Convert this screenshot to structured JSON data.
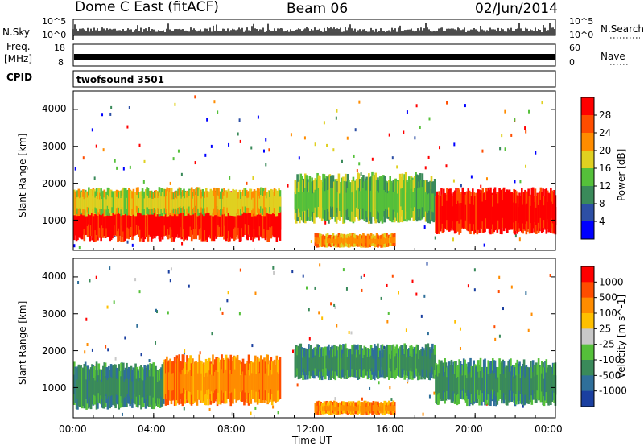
{
  "header": {
    "station": "Dome C East (fitACF)",
    "beam": "Beam 06",
    "date": "02/Jun/2014"
  },
  "sky_panel": {
    "label": "N.Sky",
    "left_ticks": [
      "10^5",
      "10^0"
    ],
    "right_ticks": [
      "10^5",
      "10^0"
    ],
    "right_label": "N.Search"
  },
  "freq_panel": {
    "label_line1": "Freq.",
    "label_line2": "[MHz]",
    "left_ticks": [
      "18",
      "8"
    ],
    "right_ticks": [
      "60",
      "0"
    ],
    "right_label": "Nave"
  },
  "cpid_panel": {
    "label": "CPID",
    "program": "twofsound 3501"
  },
  "chart_data": [
    {
      "type": "heatmap",
      "panel": "power",
      "ylabel": "Slant Range [km]",
      "yticks": [
        "4000",
        "3000",
        "2000",
        "1000"
      ],
      "ylim": [
        180,
        4500
      ],
      "colorbar_label": "Power [dB]",
      "colorbar_ticks": [
        "28",
        "24",
        "20",
        "16",
        "12",
        "8",
        "4"
      ],
      "colors": [
        "#0000ff",
        "#2d4fa5",
        "#3a8a5a",
        "#55c03a",
        "#e0d020",
        "#ff8c00",
        "#ff4d00",
        "#ff0000"
      ],
      "bands": [
        {
          "t0": 0.0,
          "t1": 10.3,
          "r0": 400,
          "r1": 1800,
          "level": 7
        },
        {
          "t0": 0.0,
          "t1": 10.3,
          "r0": 1100,
          "r1": 1900,
          "level": 4
        },
        {
          "t0": 11.0,
          "t1": 18.0,
          "r0": 900,
          "r1": 2300,
          "level": 3
        },
        {
          "t0": 12.0,
          "t1": 16.0,
          "r0": 250,
          "r1": 650,
          "level": 5
        },
        {
          "t0": 18.0,
          "t1": 24.0,
          "r0": 600,
          "r1": 1900,
          "level": 7
        }
      ]
    },
    {
      "type": "heatmap",
      "panel": "velocity",
      "ylabel": "Slant Range [km]",
      "yticks": [
        "4000",
        "3000",
        "2000",
        "1000"
      ],
      "ylim": [
        180,
        4500
      ],
      "colorbar_label": "Velocity [m s^-1]",
      "colorbar_ticks": [
        "1000",
        "500",
        "100",
        "25",
        "-25",
        "-100",
        "-500",
        "-1000"
      ],
      "colors": [
        "#1a3fa0",
        "#2f6f9a",
        "#3a8a5a",
        "#55c03a",
        "#c8c8c8",
        "#ffc000",
        "#ff8c00",
        "#ff4d00",
        "#ff0000"
      ],
      "bands": [
        {
          "t0": 0.0,
          "t1": 4.5,
          "r0": 400,
          "r1": 1700,
          "level": 2
        },
        {
          "t0": 4.5,
          "t1": 10.3,
          "r0": 500,
          "r1": 1900,
          "level": 6
        },
        {
          "t0": 11.0,
          "t1": 18.0,
          "r0": 1200,
          "r1": 2200,
          "level": 2
        },
        {
          "t0": 12.0,
          "t1": 16.0,
          "r0": 250,
          "r1": 650,
          "level": 6
        },
        {
          "t0": 18.0,
          "t1": 24.0,
          "r0": 500,
          "r1": 1800,
          "level": 2
        }
      ]
    }
  ],
  "xaxis": {
    "label": "Time UT",
    "ticks": [
      "00:00",
      "04:00",
      "08:00",
      "12:00",
      "16:00",
      "20:00",
      "00:00"
    ]
  }
}
